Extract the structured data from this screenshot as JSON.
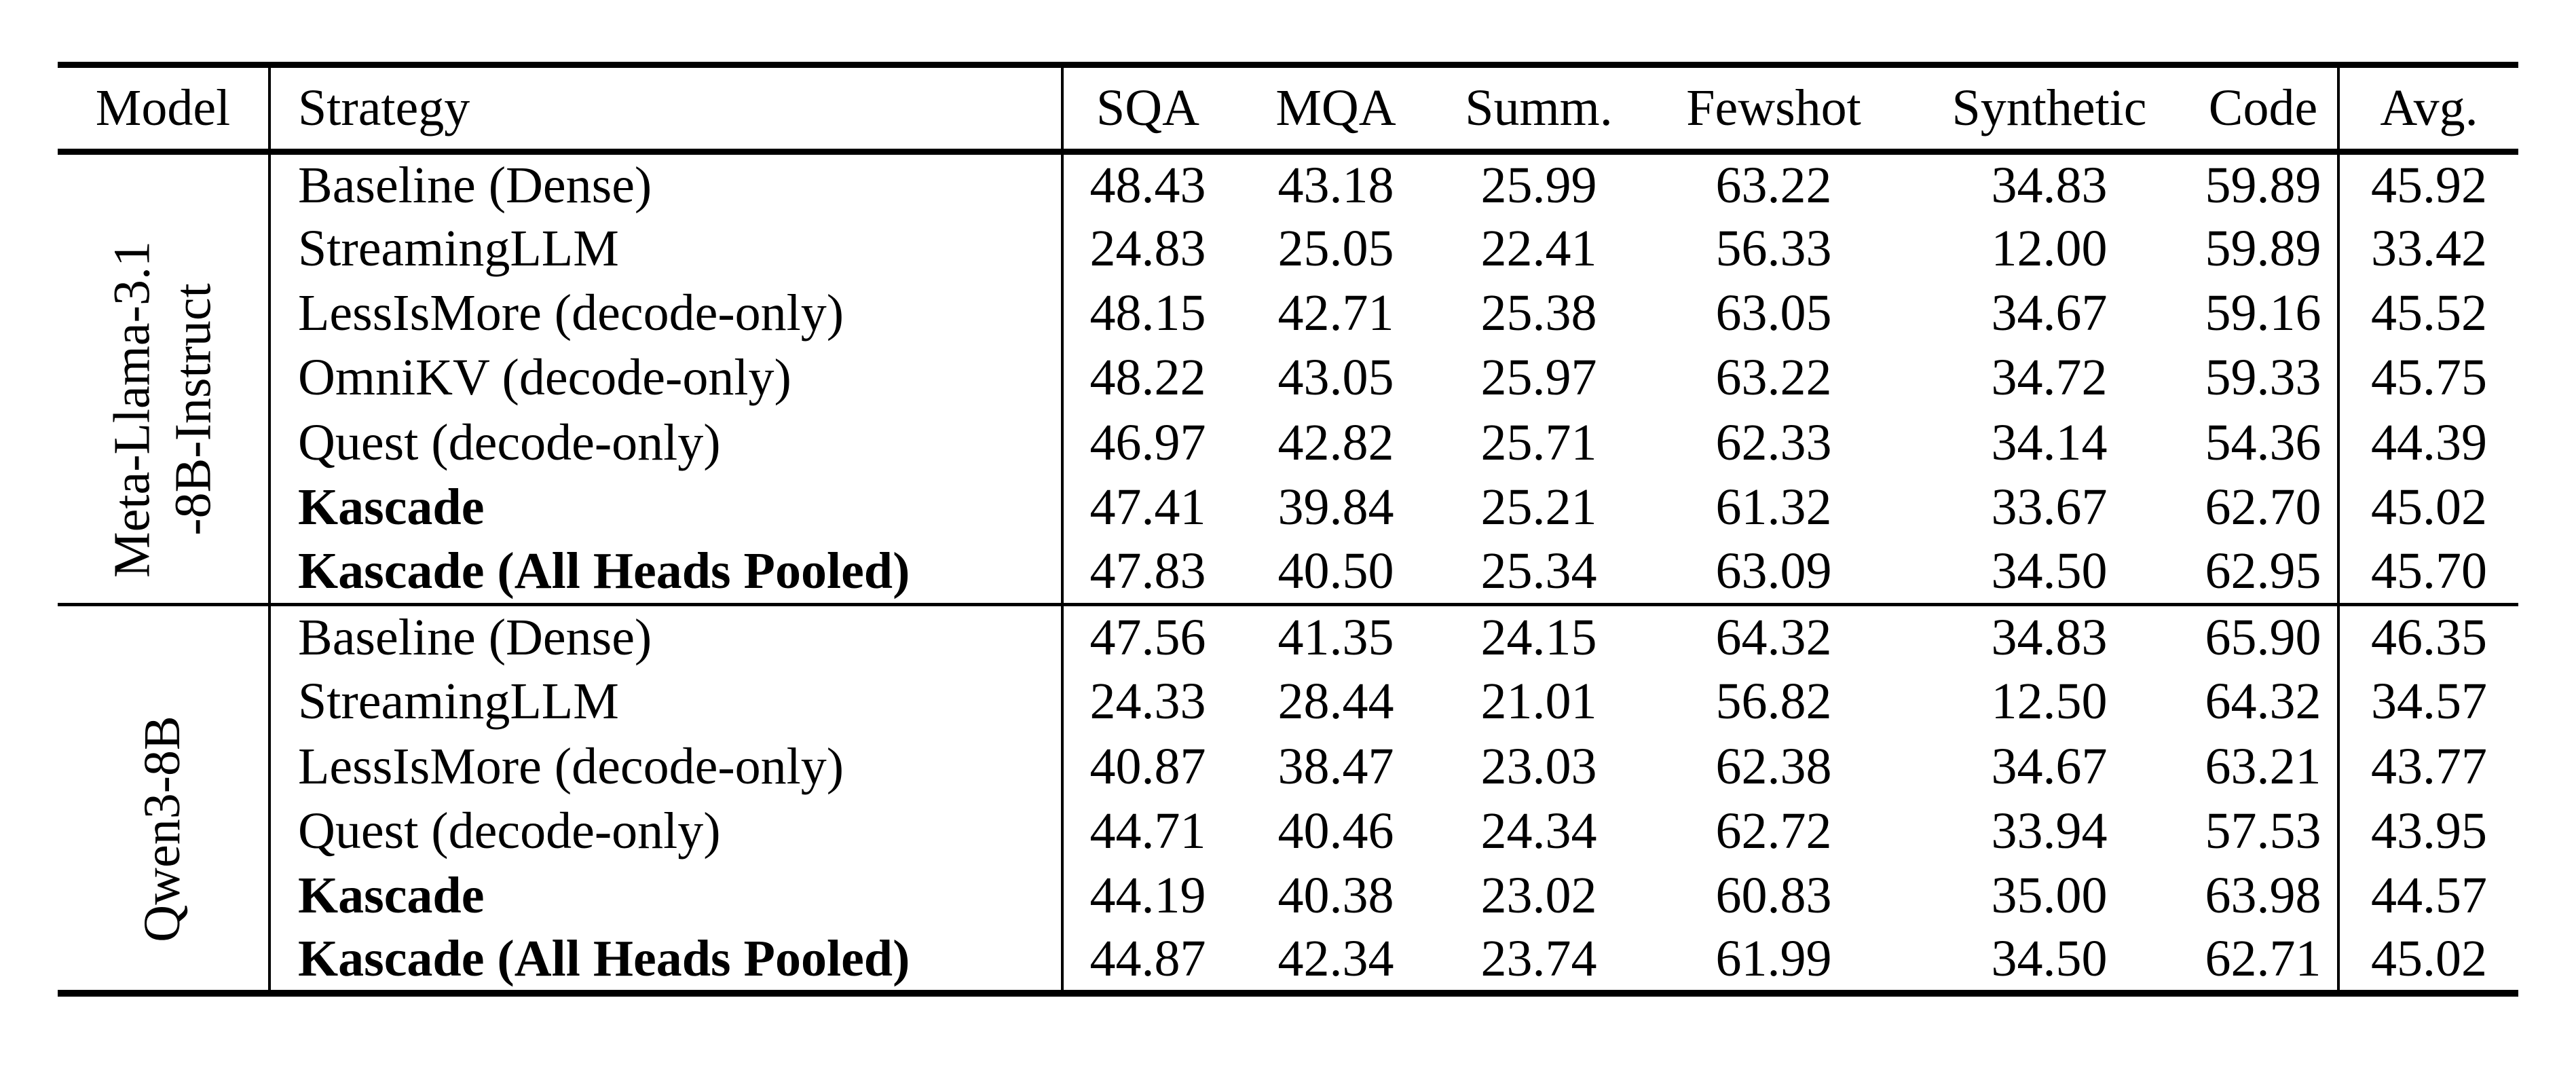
{
  "table": {
    "headers": [
      {
        "label": "Model"
      },
      {
        "label": "Strategy"
      },
      {
        "label": "SQA"
      },
      {
        "label": "MQA"
      },
      {
        "label": "Summ."
      },
      {
        "label": "Fewshot"
      },
      {
        "label": "Synthetic"
      },
      {
        "label": "Code"
      },
      {
        "label": "Avg."
      }
    ],
    "groups": [
      {
        "model_lines": [
          "Meta-Llama-3.1",
          "-8B-Instruct"
        ],
        "rows": [
          {
            "strategy": "Baseline (Dense)",
            "bold": false,
            "values": [
              "48.43",
              "43.18",
              "25.99",
              "63.22",
              "34.83",
              "59.89",
              "45.92"
            ]
          },
          {
            "strategy": "StreamingLLM",
            "bold": false,
            "values": [
              "24.83",
              "25.05",
              "22.41",
              "56.33",
              "12.00",
              "59.89",
              "33.42"
            ]
          },
          {
            "strategy": "LessIsMore (decode-only)",
            "bold": false,
            "values": [
              "48.15",
              "42.71",
              "25.38",
              "63.05",
              "34.67",
              "59.16",
              "45.52"
            ]
          },
          {
            "strategy": "OmniKV (decode-only)",
            "bold": false,
            "values": [
              "48.22",
              "43.05",
              "25.97",
              "63.22",
              "34.72",
              "59.33",
              "45.75"
            ]
          },
          {
            "strategy": "Quest (decode-only)",
            "bold": false,
            "values": [
              "46.97",
              "42.82",
              "25.71",
              "62.33",
              "34.14",
              "54.36",
              "44.39"
            ]
          },
          {
            "strategy": "Kascade",
            "bold": true,
            "values": [
              "47.41",
              "39.84",
              "25.21",
              "61.32",
              "33.67",
              "62.70",
              "45.02"
            ]
          },
          {
            "strategy": "Kascade (All Heads Pooled)",
            "bold": true,
            "values": [
              "47.83",
              "40.50",
              "25.34",
              "63.09",
              "34.50",
              "62.95",
              "45.70"
            ]
          }
        ]
      },
      {
        "model_lines": [
          "Qwen3-8B"
        ],
        "rows": [
          {
            "strategy": "Baseline (Dense)",
            "bold": false,
            "values": [
              "47.56",
              "41.35",
              "24.15",
              "64.32",
              "34.83",
              "65.90",
              "46.35"
            ]
          },
          {
            "strategy": "StreamingLLM",
            "bold": false,
            "values": [
              "24.33",
              "28.44",
              "21.01",
              "56.82",
              "12.50",
              "64.32",
              "34.57"
            ]
          },
          {
            "strategy": "LessIsMore (decode-only)",
            "bold": false,
            "values": [
              "40.87",
              "38.47",
              "23.03",
              "62.38",
              "34.67",
              "63.21",
              "43.77"
            ]
          },
          {
            "strategy": "Quest (decode-only)",
            "bold": false,
            "values": [
              "44.71",
              "40.46",
              "24.34",
              "62.72",
              "33.94",
              "57.53",
              "43.95"
            ]
          },
          {
            "strategy": "Kascade",
            "bold": true,
            "values": [
              "44.19",
              "40.38",
              "23.02",
              "60.83",
              "35.00",
              "63.98",
              "44.57"
            ]
          },
          {
            "strategy": "Kascade (All Heads Pooled)",
            "bold": true,
            "values": [
              "44.87",
              "42.34",
              "23.74",
              "61.99",
              "34.50",
              "62.71",
              "45.02"
            ]
          }
        ]
      }
    ],
    "text_color": "#000000",
    "background": "#ffffff"
  }
}
